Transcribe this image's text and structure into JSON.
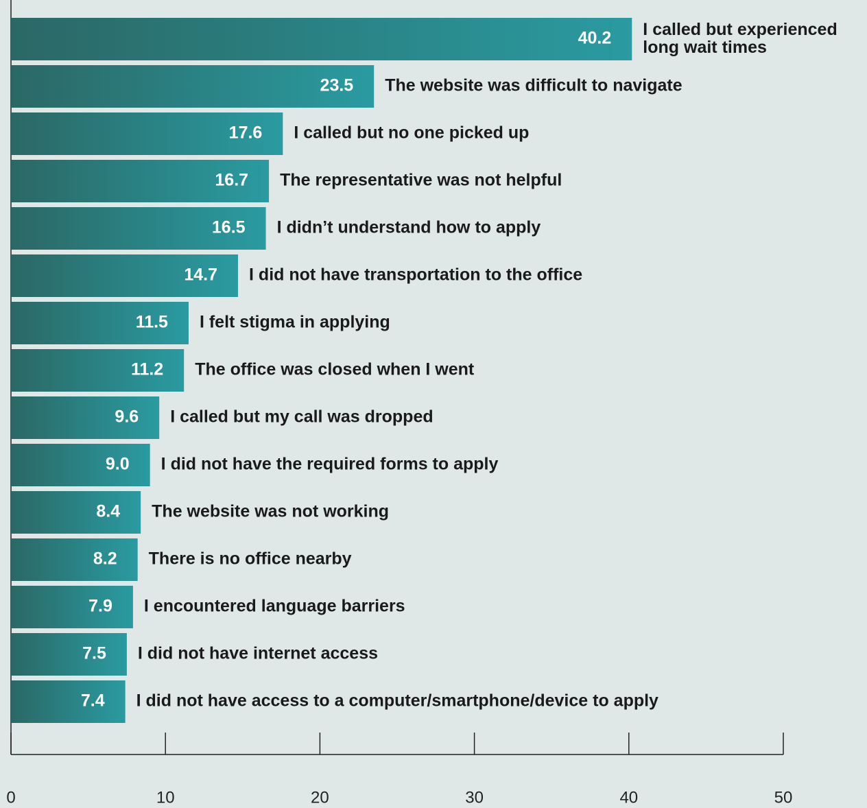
{
  "chart_data": {
    "type": "hbar",
    "categories": [
      "I called but experienced long wait times",
      "The website was difficult to navigate",
      "I called but no one picked up",
      "The representative was not helpful",
      "I didn’t understand how to apply",
      "I did not have transportation to the office",
      "I felt stigma in applying",
      "The office was closed when I went",
      "I called but my call was dropped",
      "I did not have the required forms to apply",
      "The website was not working",
      "There is no office nearby",
      "I encountered language barriers",
      "I did not have internet access",
      "I did not have access to a computer/smartphone/device to apply"
    ],
    "values": [
      40.2,
      23.5,
      17.6,
      16.7,
      16.5,
      14.7,
      11.5,
      11.2,
      9.6,
      9.0,
      8.4,
      8.2,
      7.9,
      7.5,
      7.4
    ],
    "value_labels": [
      "40.2",
      "23.5",
      "17.6",
      "16.7",
      "16.5",
      "14.7",
      "11.5",
      "11.2",
      "9.6",
      "9.0",
      "8.4",
      "8.2",
      "7.9",
      "7.5",
      "7.4"
    ],
    "color": [
      "#2b6865",
      "#2a9ba1"
    ],
    "xlim": [
      0,
      50
    ],
    "xticks": [
      0,
      10,
      20,
      30,
      40,
      50
    ]
  }
}
